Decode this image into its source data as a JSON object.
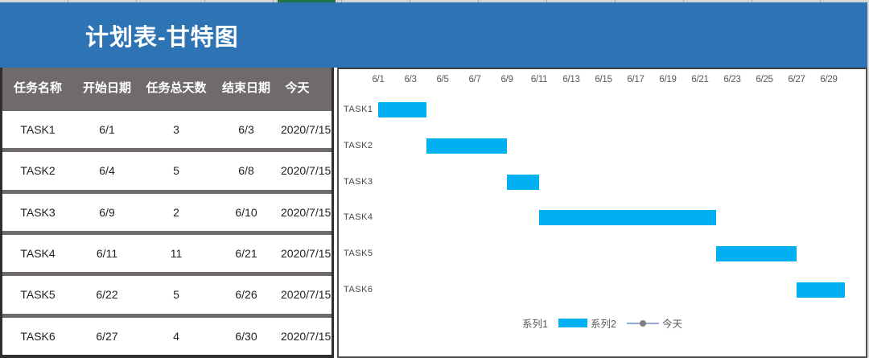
{
  "title_bar": {
    "title": "计划表-甘特图",
    "bg_color": "#2E74B5"
  },
  "top_strip": {
    "selected_column_color": "#217346",
    "strip_color": "#d5d5d5"
  },
  "table": {
    "header_bg": "#6F6B6B",
    "headers": [
      "任务名称",
      "开始日期",
      "任务总天数",
      "结束日期",
      "今天"
    ],
    "rows": [
      [
        "TASK1",
        "6/1",
        "3",
        "6/3",
        "2020/7/15"
      ],
      [
        "TASK2",
        "6/4",
        "5",
        "6/8",
        "2020/7/15"
      ],
      [
        "TASK3",
        "6/9",
        "2",
        "6/10",
        "2020/7/15"
      ],
      [
        "TASK4",
        "6/11",
        "11",
        "6/21",
        "2020/7/15"
      ],
      [
        "TASK5",
        "6/22",
        "5",
        "6/26",
        "2020/7/15"
      ],
      [
        "TASK6",
        "6/27",
        "4",
        "6/30",
        "2020/7/15"
      ]
    ]
  },
  "chart_data": {
    "type": "bar",
    "subtype": "gantt",
    "title": "",
    "x_axis": {
      "month": 6,
      "min_day": 1,
      "max_day": 30,
      "tick_labels": [
        "6/1",
        "6/3",
        "6/5",
        "6/7",
        "6/9",
        "6/11",
        "6/13",
        "6/15",
        "6/17",
        "6/19",
        "6/21",
        "6/23",
        "6/25",
        "6/27",
        "6/29"
      ],
      "tick_days": [
        1,
        3,
        5,
        7,
        9,
        11,
        13,
        15,
        17,
        19,
        21,
        23,
        25,
        27,
        29
      ]
    },
    "categories": [
      "TASK1",
      "TASK2",
      "TASK3",
      "TASK4",
      "TASK5",
      "TASK6"
    ],
    "series": [
      {
        "name": "系列1",
        "role": "hidden-start-offset",
        "values": [
          1,
          4,
          9,
          11,
          22,
          27
        ]
      },
      {
        "name": "系列2",
        "role": "duration-bars",
        "values": [
          3,
          5,
          2,
          11,
          5,
          4
        ],
        "color": "#00B0F0"
      },
      {
        "name": "今天",
        "role": "today-line-marker",
        "value": "2020/7/15",
        "plotted_in_range": false
      }
    ],
    "bars": [
      {
        "task": "TASK1",
        "start": "6/1",
        "end": "6/3",
        "start_day": 1,
        "duration": 3
      },
      {
        "task": "TASK2",
        "start": "6/4",
        "end": "6/8",
        "start_day": 4,
        "duration": 5
      },
      {
        "task": "TASK3",
        "start": "6/9",
        "end": "6/10",
        "start_day": 9,
        "duration": 2
      },
      {
        "task": "TASK4",
        "start": "6/11",
        "end": "6/21",
        "start_day": 11,
        "duration": 11
      },
      {
        "task": "TASK5",
        "start": "6/22",
        "end": "6/26",
        "start_day": 22,
        "duration": 5
      },
      {
        "task": "TASK6",
        "start": "6/27",
        "end": "6/30",
        "start_day": 27,
        "duration": 4
      }
    ],
    "legend": {
      "position": "bottom-center",
      "entries": [
        {
          "label": "系列1",
          "swatch": "none"
        },
        {
          "label": "系列2",
          "swatch": "bar",
          "color": "#00B0F0"
        },
        {
          "label": "今天",
          "swatch": "line-marker",
          "line_color": "#8FAADC",
          "marker_color": "#7F7F7F"
        }
      ]
    },
    "grid": false,
    "bar_color": "#00B0F0",
    "text_color": "#595959"
  }
}
